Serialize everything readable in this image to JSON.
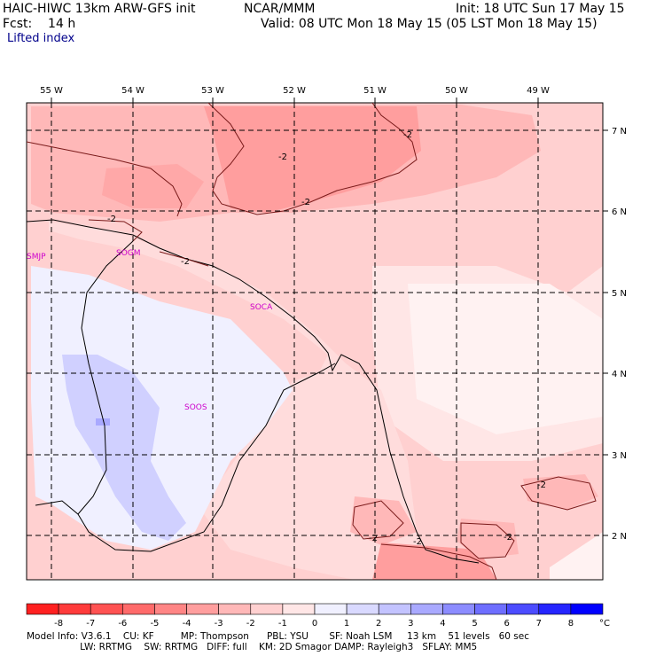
{
  "header": {
    "model": "HAIC-HIWC 13km ARW-GFS init",
    "org": "NCAR/MMM",
    "init": "Init: 18 UTC Sun 17 May 15",
    "fcst": "Fcst:    14 h",
    "valid": "Valid: 08 UTC Mon 18 May 15 (05 LST Mon 18 May 15)",
    "field": "Lifted index"
  },
  "axes": {
    "lon_labels": [
      "55 W",
      "54 W",
      "53 W",
      "52 W",
      "51 W",
      "50 W",
      "49 W"
    ],
    "lat_labels": [
      "7 N",
      "6 N",
      "5 N",
      "4 N",
      "3 N",
      "2 N"
    ]
  },
  "stations": [
    "SMJP",
    "SOGM",
    "SOCA",
    "SOOS"
  ],
  "contour_labels": [
    "-2"
  ],
  "colorbar": {
    "ticks": [
      "-8",
      "-7",
      "-6",
      "-5",
      "-4",
      "-3",
      "-2",
      "-1",
      "0",
      "1",
      "2",
      "3",
      "4",
      "5",
      "6",
      "7",
      "8"
    ],
    "unit": "°C",
    "colors": [
      "#ff2020",
      "#ff3b3b",
      "#ff5252",
      "#ff6a6a",
      "#ff8585",
      "#ff9e9e",
      "#ffb8b8",
      "#ffd0d0",
      "#ffe6e6",
      "#f0f0ff",
      "#d9d9ff",
      "#c3c3ff",
      "#a9a9ff",
      "#8c8cff",
      "#6e6eff",
      "#4c4cff",
      "#2525ff",
      "#0000ff"
    ]
  },
  "footer": {
    "line1": "Model Info: V3.6.1    CU: KF         MP: Thompson      PBL: YSU       SF: Noah LSM     13 km    51 levels   60 sec",
    "line2": "                  LW: RRTMG    SW: RRTMG   DIFF: full    KM: 2D Smagor DAMP: Rayleigh3   SFLAY: MM5"
  }
}
